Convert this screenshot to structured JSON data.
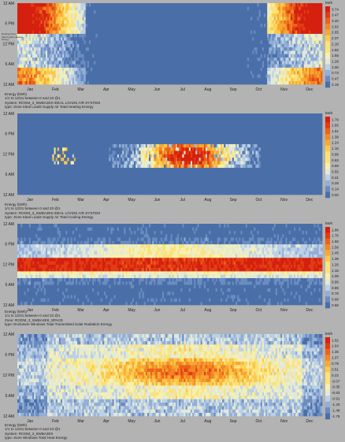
{
  "chart_data": [
    {
      "type": "heatmap",
      "months": [
        "Jan",
        "Feb",
        "Mar",
        "Apr",
        "May",
        "Jun",
        "Jul",
        "Aug",
        "Sep",
        "Oct",
        "Nov",
        "Dec"
      ],
      "hour_ticks": [
        "12 AM",
        "6 PM",
        "12 PM",
        "6 AM",
        "12 AM"
      ],
      "unit": "kWh",
      "scale": [
        "3.74",
        "3.47",
        "3.20",
        "2.92",
        "2.65",
        "2.37",
        "2.10",
        "1.82",
        "1.55",
        "1.28",
        "1.00",
        "0.73",
        "0.47",
        "0.19"
      ],
      "caption": [
        "Energy (kWh)",
        "1/1 to 12/31 between 0 and 23 @1",
        "System: ROOM_3_5WBA2E9 IDEAL LOADS AIR SYSTEM",
        "type: Zone Ideal Loads Supply Air Total Heating Energy"
      ],
      "side_label": [
        "Heating Zone",
        "Ideal Loads Heating",
        "Energy"
      ],
      "pattern": "heating"
    },
    {
      "type": "heatmap",
      "months": [
        "Jan",
        "Feb",
        "Mar",
        "Apr",
        "May",
        "Jun",
        "Jul",
        "Aug",
        "Sep",
        "Oct",
        "Nov",
        "Dec"
      ],
      "hour_ticks": [
        "12 AM",
        "6 PM",
        "12 PM",
        "6 AM",
        "12 AM"
      ],
      "unit": "kWh",
      "scale": [
        "1.79",
        "1.65",
        "1.51",
        "1.38",
        "1.24",
        "1.10",
        "0.96",
        "0.83",
        "0.69",
        "0.55",
        "0.41",
        "0.28",
        "0.14",
        "0.00"
      ],
      "caption": [
        "Energy (kWh)",
        "1/1 to 12/31 between 0 and 23 @1",
        "System: ROOM_3_5WBA2E9 IDEAL LOADS AIR SYSTEM",
        "type: Zone Ideal Loads Supply Air Total Cooling Energy"
      ],
      "pattern": "cooling"
    },
    {
      "type": "heatmap",
      "months": [
        "Jan",
        "Feb",
        "Mar",
        "Apr",
        "May",
        "Jun",
        "Jul",
        "Aug",
        "Sep",
        "Oct",
        "Nov",
        "Dec"
      ],
      "hour_ticks": [
        "12 AM",
        "6 PM",
        "12 PM",
        "6 AM",
        "12 AM"
      ],
      "unit": "kWh",
      "scale": [
        "1.86",
        "1.76",
        "1.66",
        "1.56",
        "1.46",
        "1.36",
        "1.26",
        "1.16",
        "1.06",
        "0.96",
        "0.86",
        "0.76",
        "0.66",
        "0.56"
      ],
      "caption": [
        "Energy (kWh)",
        "1/1 to 12/31 between 0 and 23 @1",
        "Zone: ROOM_3_5WBA2E9_SPACE",
        "type: Enclosure Windows Total Transmitted Solar Radiation Energy"
      ],
      "pattern": "solar"
    },
    {
      "type": "heatmap",
      "months": [
        "Jan",
        "Feb",
        "Mar",
        "Apr",
        "May",
        "Jun",
        "Jul",
        "Aug",
        "Sep",
        "Oct",
        "Nov",
        "Dec"
      ],
      "hour_ticks": [
        "12 AM",
        "6 PM",
        "12 PM",
        "6 AM",
        "12 AM"
      ],
      "unit": "kWh",
      "scale": [
        "1.92",
        "1.64",
        "1.35",
        "1.07",
        "0.79",
        "0.51",
        "0.22",
        "-0.07",
        "-0.35",
        "-0.63",
        "-0.91",
        "-1.20",
        "-1.48",
        "-1.76"
      ],
      "caption": [
        "Energy (kWh)",
        "1/1 to 12/31 between 0 and 23 @1",
        "System: ROOM_3_5WBA2E9",
        "type: Zone Windows Total Heat Energy"
      ],
      "pattern": "window"
    }
  ]
}
